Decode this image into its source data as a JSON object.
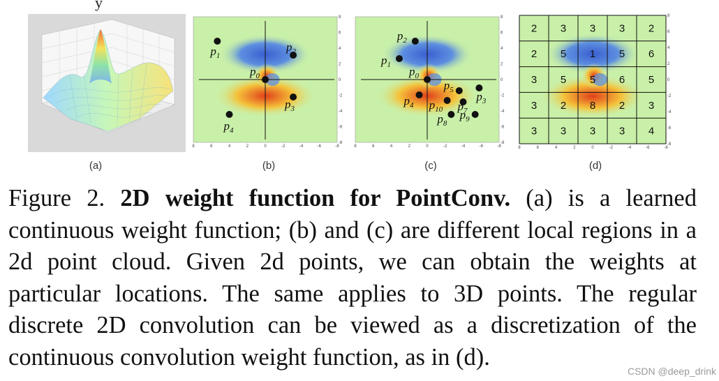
{
  "top_strip_text": "y",
  "panels": {
    "a": {
      "label": "(a)"
    },
    "b": {
      "label": "(b)",
      "x_ticks": [
        "8",
        "6",
        "4",
        "2",
        "0",
        "-2",
        "-4",
        "-6",
        "-8"
      ],
      "y_ticks": [
        "8",
        "6",
        "4",
        "2",
        "0",
        "-2",
        "-4",
        "-6",
        "-8"
      ],
      "points": [
        {
          "main": "p",
          "sub": "1",
          "x": -6,
          "y": 5.5
        },
        {
          "main": "p",
          "sub": "2",
          "x": 3.5,
          "y": 3.5
        },
        {
          "main": "p",
          "sub": "0",
          "x": 0,
          "y": 0
        },
        {
          "main": "p",
          "sub": "3",
          "x": 3.5,
          "y": -2.5
        },
        {
          "main": "p",
          "sub": "4",
          "x": -4.5,
          "y": -5
        }
      ]
    },
    "c": {
      "label": "(c)",
      "x_ticks": [
        "8",
        "6",
        "4",
        "2",
        "0",
        "-2",
        "-4",
        "-6",
        "-8"
      ],
      "y_ticks": [
        "8",
        "6",
        "4",
        "2",
        "0",
        "-2",
        "-4",
        "-6",
        "-8"
      ],
      "points": [
        {
          "main": "p",
          "sub": "2",
          "x": -1.5,
          "y": 5.5
        },
        {
          "main": "p",
          "sub": "1",
          "x": -3.5,
          "y": 3
        },
        {
          "main": "p",
          "sub": "0",
          "x": 0,
          "y": 0
        },
        {
          "main": "p",
          "sub": "4",
          "x": -1,
          "y": -2.2
        },
        {
          "main": "p",
          "sub": "5",
          "x": 4,
          "y": -1.6
        },
        {
          "main": "p",
          "sub": "3",
          "x": 6.5,
          "y": -1.2
        },
        {
          "main": "p",
          "sub": "10",
          "x": 2.5,
          "y": -3
        },
        {
          "main": "p",
          "sub": "7",
          "x": 4.5,
          "y": -3.2
        },
        {
          "main": "p",
          "sub": "8",
          "x": 3,
          "y": -5
        },
        {
          "main": "p",
          "sub": "9",
          "x": 6,
          "y": -5
        }
      ]
    },
    "d": {
      "label": "(d)",
      "x_ticks": [
        "8",
        "6",
        "4",
        "2",
        "0",
        "-2",
        "-4",
        "-6",
        "-8"
      ],
      "y_ticks": [
        "8",
        "6",
        "4",
        "2",
        "0",
        "-2",
        "-4",
        "-6",
        "-8"
      ],
      "grid": [
        [
          "2",
          "3",
          "3",
          "3",
          "2"
        ],
        [
          "2",
          "5",
          "1",
          "5",
          "6"
        ],
        [
          "3",
          "5",
          "5",
          "6",
          "5"
        ],
        [
          "3",
          "2",
          "8",
          "2",
          "3"
        ],
        [
          "3",
          "3",
          "3",
          "3",
          "4"
        ]
      ]
    }
  },
  "caption": {
    "prefix": "Figure 2.",
    "title": "2D weight function for PointConv.",
    "body": "(a) is a learned continuous weight function; (b) and (c) are different local regions in a 2d point cloud. Given 2d points, we can obtain the weights at particular locations. The same applies to 3D points. The regular discrete 2D convolution can be viewed as a discretization of the continuous convolution weight function, as in (d)."
  },
  "watermark": "CSDN @deep_drink",
  "colors": {
    "field_background": "#c9f0a8",
    "hot": "#e0401a",
    "warm": "#f5c23a",
    "cool": "#5d8fe0",
    "cold": "#3a5fd0",
    "grid_line": "#111111"
  }
}
